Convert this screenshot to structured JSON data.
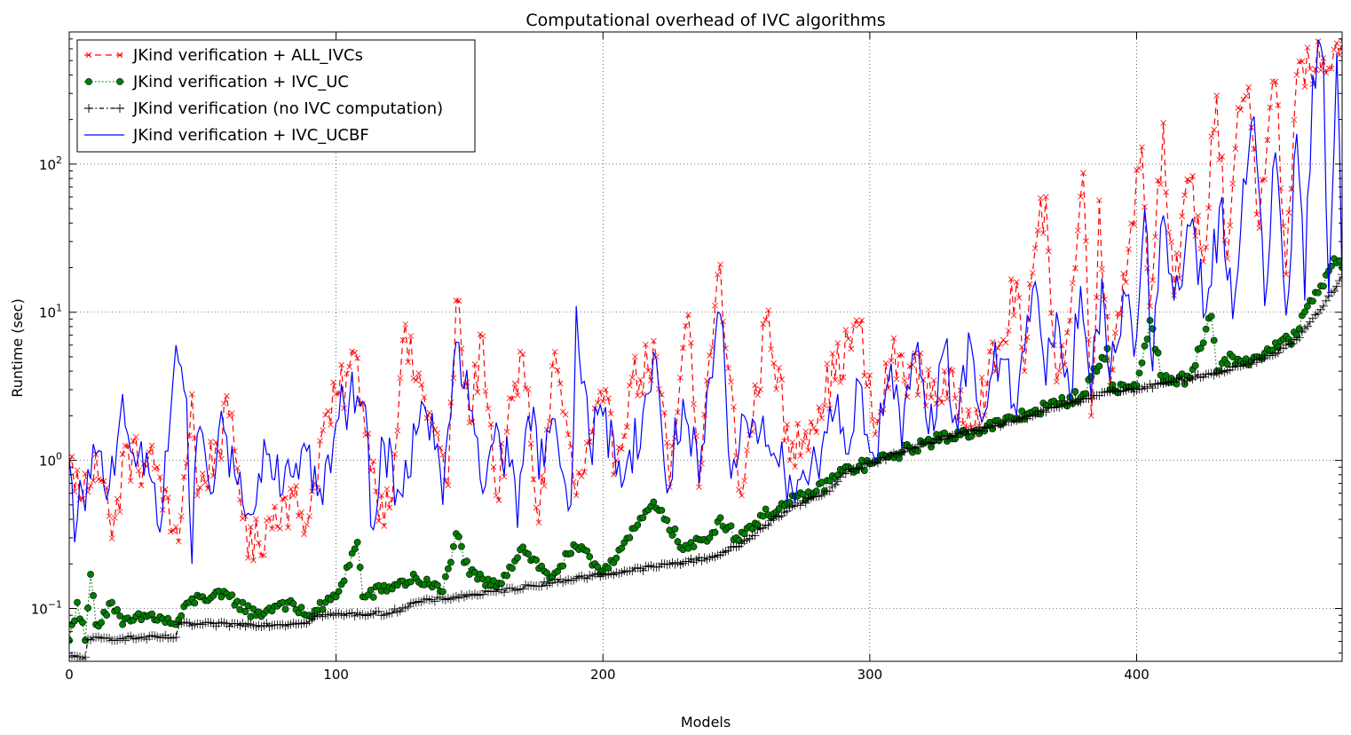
{
  "chart_data": {
    "type": "line",
    "title": "Computational overhead of IVC algorithms",
    "xlabel": "Models",
    "ylabel": "Runtime (sec)",
    "x_scale": "linear",
    "y_scale": "log",
    "xlim": [
      0,
      477
    ],
    "ylim": [
      0.044,
      780
    ],
    "x_ticks": [
      0,
      100,
      200,
      300,
      400
    ],
    "y_ticks": [
      {
        "value": 0.1,
        "base": "10",
        "exp": "−1"
      },
      {
        "value": 1,
        "base": "10",
        "exp": "0"
      },
      {
        "value": 10,
        "base": "10",
        "exp": "1"
      },
      {
        "value": 100,
        "base": "10",
        "exp": "2"
      }
    ],
    "grid": true,
    "legend_position": "top-left",
    "n_models": 478,
    "series": [
      {
        "name": "JKind verification + ALL_IVCs",
        "color": "#ff0000",
        "line": "dashed",
        "marker": "x",
        "values_sampled": [
          [
            0,
            1.0
          ],
          [
            5,
            0.55
          ],
          [
            10,
            1.1
          ],
          [
            15,
            0.42
          ],
          [
            19,
            0.45
          ],
          [
            20,
            1.1
          ],
          [
            28,
            0.95
          ],
          [
            33,
            0.9
          ],
          [
            38,
            0.33
          ],
          [
            42,
            0.42
          ],
          [
            46,
            2.8
          ],
          [
            48,
            0.58
          ],
          [
            60,
            2.0
          ],
          [
            66,
            0.42
          ],
          [
            67,
            0.22
          ],
          [
            80,
            0.55
          ],
          [
            90,
            0.42
          ],
          [
            95,
            1.6
          ],
          [
            108,
            4.9
          ],
          [
            110,
            2.4
          ],
          [
            115,
            0.62
          ],
          [
            120,
            0.48
          ],
          [
            125,
            6.5
          ],
          [
            135,
            2.1
          ],
          [
            142,
            0.68
          ],
          [
            145,
            12.0
          ],
          [
            150,
            1.8
          ],
          [
            155,
            6.9
          ],
          [
            160,
            0.58
          ],
          [
            170,
            5.2
          ],
          [
            176,
            0.38
          ],
          [
            182,
            5.4
          ],
          [
            190,
            0.58
          ],
          [
            200,
            2.5
          ],
          [
            205,
            1.0
          ],
          [
            210,
            3.2
          ],
          [
            220,
            5.0
          ],
          [
            225,
            0.66
          ],
          [
            232,
            9.6
          ],
          [
            236,
            0.66
          ],
          [
            240,
            5.1
          ],
          [
            244,
            21.0
          ],
          [
            246,
            5.7
          ],
          [
            252,
            0.58
          ],
          [
            262,
            10.3
          ],
          [
            270,
            1.0
          ],
          [
            296,
            8.2
          ],
          [
            302,
            1.5
          ],
          [
            308,
            4.7
          ],
          [
            320,
            3.5
          ],
          [
            340,
            2.2
          ],
          [
            350,
            6.5
          ],
          [
            355,
            16.0
          ],
          [
            358,
            4.0
          ],
          [
            362,
            27.0
          ],
          [
            366,
            60.0
          ],
          [
            370,
            3.4
          ],
          [
            375,
            8.8
          ],
          [
            380,
            87.0
          ],
          [
            383,
            2.0
          ],
          [
            386,
            57.0
          ],
          [
            390,
            3.2
          ],
          [
            393,
            9.8
          ],
          [
            402,
            130.0
          ],
          [
            405,
            11.0
          ],
          [
            410,
            190.0
          ],
          [
            414,
            13.0
          ],
          [
            420,
            77.0
          ],
          [
            425,
            22.0
          ],
          [
            430,
            290.0
          ],
          [
            434,
            23.0
          ],
          [
            438,
            240.0
          ],
          [
            442,
            330.0
          ],
          [
            446,
            37.0
          ],
          [
            452,
            360.0
          ],
          [
            456,
            18.0
          ],
          [
            460,
            400.0
          ],
          [
            465,
            440.0
          ],
          [
            470,
            520.0
          ],
          [
            477,
            680.0
          ]
        ]
      },
      {
        "name": "JKind verification + IVC_UC",
        "color": "#007f00",
        "line": "dotted",
        "marker": "circle",
        "values_sampled": [
          [
            0,
            0.061
          ],
          [
            3,
            0.11
          ],
          [
            6,
            0.061
          ],
          [
            8,
            0.17
          ],
          [
            10,
            0.078
          ],
          [
            16,
            0.11
          ],
          [
            20,
            0.078
          ],
          [
            30,
            0.09
          ],
          [
            40,
            0.078
          ],
          [
            45,
            0.11
          ],
          [
            50,
            0.12
          ],
          [
            60,
            0.12
          ],
          [
            70,
            0.09
          ],
          [
            80,
            0.11
          ],
          [
            90,
            0.09
          ],
          [
            100,
            0.12
          ],
          [
            108,
            0.28
          ],
          [
            110,
            0.12
          ],
          [
            120,
            0.14
          ],
          [
            130,
            0.16
          ],
          [
            140,
            0.13
          ],
          [
            145,
            0.32
          ],
          [
            150,
            0.17
          ],
          [
            160,
            0.14
          ],
          [
            170,
            0.26
          ],
          [
            180,
            0.16
          ],
          [
            190,
            0.26
          ],
          [
            200,
            0.18
          ],
          [
            210,
            0.3
          ],
          [
            218,
            0.49
          ],
          [
            222,
            0.46
          ],
          [
            230,
            0.25
          ],
          [
            240,
            0.3
          ],
          [
            244,
            0.41
          ],
          [
            250,
            0.3
          ],
          [
            260,
            0.42
          ],
          [
            270,
            0.52
          ],
          [
            280,
            0.62
          ],
          [
            290,
            0.85
          ],
          [
            300,
            0.95
          ],
          [
            310,
            1.1
          ],
          [
            320,
            1.3
          ],
          [
            330,
            1.45
          ],
          [
            340,
            1.6
          ],
          [
            350,
            1.8
          ],
          [
            360,
            2.1
          ],
          [
            370,
            2.4
          ],
          [
            380,
            2.8
          ],
          [
            389,
            5.7
          ],
          [
            390,
            3.0
          ],
          [
            400,
            3.2
          ],
          [
            405,
            8.8
          ],
          [
            410,
            3.4
          ],
          [
            420,
            3.6
          ],
          [
            428,
            9.4
          ],
          [
            430,
            4.0
          ],
          [
            436,
            5.0
          ],
          [
            440,
            4.5
          ],
          [
            450,
            5.5
          ],
          [
            460,
            7.0
          ],
          [
            465,
            12.0
          ],
          [
            470,
            15.0
          ],
          [
            474,
            23.0
          ],
          [
            477,
            20.0
          ]
        ]
      },
      {
        "name": "JKind verification (no IVC computation)",
        "color": "#000000",
        "line": "dashdot",
        "marker": "plus",
        "values_sampled": [
          [
            0,
            0.047
          ],
          [
            6,
            0.047
          ],
          [
            7,
            0.062
          ],
          [
            20,
            0.063
          ],
          [
            40,
            0.064
          ],
          [
            41,
            0.078
          ],
          [
            80,
            0.078
          ],
          [
            90,
            0.082
          ],
          [
            93,
            0.09
          ],
          [
            120,
            0.093
          ],
          [
            130,
            0.11
          ],
          [
            160,
            0.13
          ],
          [
            190,
            0.16
          ],
          [
            210,
            0.18
          ],
          [
            240,
            0.22
          ],
          [
            250,
            0.26
          ],
          [
            260,
            0.35
          ],
          [
            270,
            0.48
          ],
          [
            280,
            0.57
          ],
          [
            285,
            0.62
          ],
          [
            290,
            0.82
          ],
          [
            300,
            0.95
          ],
          [
            310,
            1.1
          ],
          [
            320,
            1.3
          ],
          [
            330,
            1.45
          ],
          [
            340,
            1.6
          ],
          [
            350,
            1.75
          ],
          [
            360,
            2.0
          ],
          [
            370,
            2.3
          ],
          [
            380,
            2.6
          ],
          [
            390,
            2.9
          ],
          [
            400,
            3.0
          ],
          [
            410,
            3.3
          ],
          [
            420,
            3.6
          ],
          [
            430,
            3.9
          ],
          [
            440,
            4.4
          ],
          [
            450,
            5.1
          ],
          [
            460,
            6.5
          ],
          [
            470,
            11.0
          ],
          [
            475,
            15.0
          ],
          [
            477,
            18.0
          ]
        ]
      },
      {
        "name": "JKind verification + IVC_UCBF",
        "color": "#0000ff",
        "line": "solid",
        "marker": "none",
        "values_sampled": [
          [
            0,
            1.0
          ],
          [
            2,
            0.28
          ],
          [
            5,
            0.6
          ],
          [
            8,
            0.75
          ],
          [
            10,
            1.1
          ],
          [
            15,
            0.65
          ],
          [
            20,
            2.8
          ],
          [
            25,
            0.9
          ],
          [
            30,
            0.8
          ],
          [
            35,
            0.45
          ],
          [
            40,
            6.0
          ],
          [
            44,
            2.6
          ],
          [
            46,
            0.2
          ],
          [
            48,
            1.5
          ],
          [
            52,
            0.75
          ],
          [
            58,
            1.6
          ],
          [
            62,
            0.8
          ],
          [
            66,
            0.42
          ],
          [
            70,
            0.5
          ],
          [
            74,
            1.1
          ],
          [
            80,
            0.6
          ],
          [
            88,
            1.3
          ],
          [
            95,
            0.5
          ],
          [
            100,
            1.8
          ],
          [
            105,
            2.6
          ],
          [
            110,
            2.5
          ],
          [
            114,
            0.34
          ],
          [
            118,
            1.3
          ],
          [
            124,
            0.6
          ],
          [
            130,
            1.5
          ],
          [
            136,
            2.1
          ],
          [
            140,
            0.5
          ],
          [
            145,
            6.3
          ],
          [
            150,
            2.2
          ],
          [
            155,
            0.6
          ],
          [
            160,
            1.8
          ],
          [
            165,
            0.9
          ],
          [
            168,
            0.35
          ],
          [
            172,
            2.0
          ],
          [
            178,
            0.9
          ],
          [
            182,
            1.9
          ],
          [
            188,
            0.5
          ],
          [
            190,
            11.0
          ],
          [
            195,
            1.3
          ],
          [
            200,
            2.0
          ],
          [
            208,
            0.75
          ],
          [
            215,
            2.1
          ],
          [
            220,
            4.8
          ],
          [
            224,
            0.6
          ],
          [
            230,
            2.6
          ],
          [
            236,
            0.7
          ],
          [
            244,
            9.7
          ],
          [
            248,
            0.75
          ],
          [
            254,
            1.8
          ],
          [
            260,
            2.0
          ],
          [
            266,
            0.9
          ],
          [
            270,
            0.8
          ],
          [
            276,
            0.75
          ],
          [
            282,
            1.2
          ],
          [
            288,
            2.8
          ],
          [
            292,
            1.1
          ],
          [
            296,
            3.4
          ],
          [
            302,
            1.0
          ],
          [
            308,
            4.5
          ],
          [
            312,
            1.2
          ],
          [
            318,
            6.3
          ],
          [
            322,
            1.5
          ],
          [
            328,
            5.8
          ],
          [
            332,
            2.0
          ],
          [
            338,
            6.0
          ],
          [
            342,
            1.8
          ],
          [
            346,
            4.0
          ],
          [
            350,
            4.8
          ],
          [
            354,
            2.4
          ],
          [
            358,
            5.5
          ],
          [
            362,
            16.0
          ],
          [
            366,
            3.2
          ],
          [
            370,
            10.0
          ],
          [
            375,
            2.6
          ],
          [
            379,
            15.0
          ],
          [
            383,
            2.7
          ],
          [
            387,
            17.0
          ],
          [
            390,
            3.5
          ],
          [
            395,
            14.0
          ],
          [
            400,
            6.8
          ],
          [
            403,
            50.0
          ],
          [
            406,
            4.0
          ],
          [
            410,
            45.0
          ],
          [
            414,
            12.0
          ],
          [
            420,
            38.0
          ],
          [
            426,
            10.0
          ],
          [
            432,
            60.0
          ],
          [
            436,
            9.0
          ],
          [
            440,
            80.0
          ],
          [
            444,
            210.0
          ],
          [
            448,
            11.0
          ],
          [
            452,
            120.0
          ],
          [
            456,
            9.5
          ],
          [
            460,
            160.0
          ],
          [
            463,
            12.0
          ],
          [
            466,
            400.0
          ],
          [
            470,
            500.0
          ],
          [
            472,
            13.0
          ],
          [
            475,
            560.0
          ],
          [
            477,
            15.0
          ]
        ]
      }
    ]
  }
}
